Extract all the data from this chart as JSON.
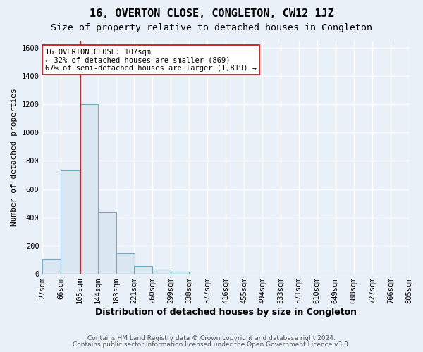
{
  "title": "16, OVERTON CLOSE, CONGLETON, CW12 1JZ",
  "subtitle": "Size of property relative to detached houses in Congleton",
  "xlabel": "Distribution of detached houses by size in Congleton",
  "ylabel": "Number of detached properties",
  "footnote1": "Contains HM Land Registry data © Crown copyright and database right 2024.",
  "footnote2": "Contains public sector information licensed under the Open Government Licence v3.0.",
  "bin_edges": [
    27,
    66,
    105,
    144,
    183,
    221,
    260,
    299,
    338,
    377,
    416,
    455,
    494,
    533,
    571,
    610,
    649,
    688,
    727,
    766,
    805
  ],
  "bar_heights": [
    105,
    730,
    1200,
    440,
    145,
    55,
    30,
    15,
    0,
    0,
    0,
    0,
    0,
    0,
    0,
    0,
    0,
    0,
    0,
    0
  ],
  "bar_color": "#dae6f0",
  "bar_edge_color": "#7aaac8",
  "property_size": 107,
  "property_line_color": "#cc0000",
  "annotation_text": "16 OVERTON CLOSE: 107sqm\n← 32% of detached houses are smaller (869)\n67% of semi-detached houses are larger (1,819) →",
  "annotation_box_color": "#ffffff",
  "annotation_box_edge_color": "#cc0000",
  "ylim": [
    0,
    1650
  ],
  "yticks": [
    0,
    200,
    400,
    600,
    800,
    1000,
    1200,
    1400,
    1600
  ],
  "background_color": "#eaf0f8",
  "grid_color": "#ffffff",
  "title_fontsize": 11,
  "subtitle_fontsize": 9.5,
  "xlabel_fontsize": 9,
  "ylabel_fontsize": 8,
  "tick_fontsize": 7.5,
  "annotation_fontsize": 7.5,
  "footnote_fontsize": 6.5
}
